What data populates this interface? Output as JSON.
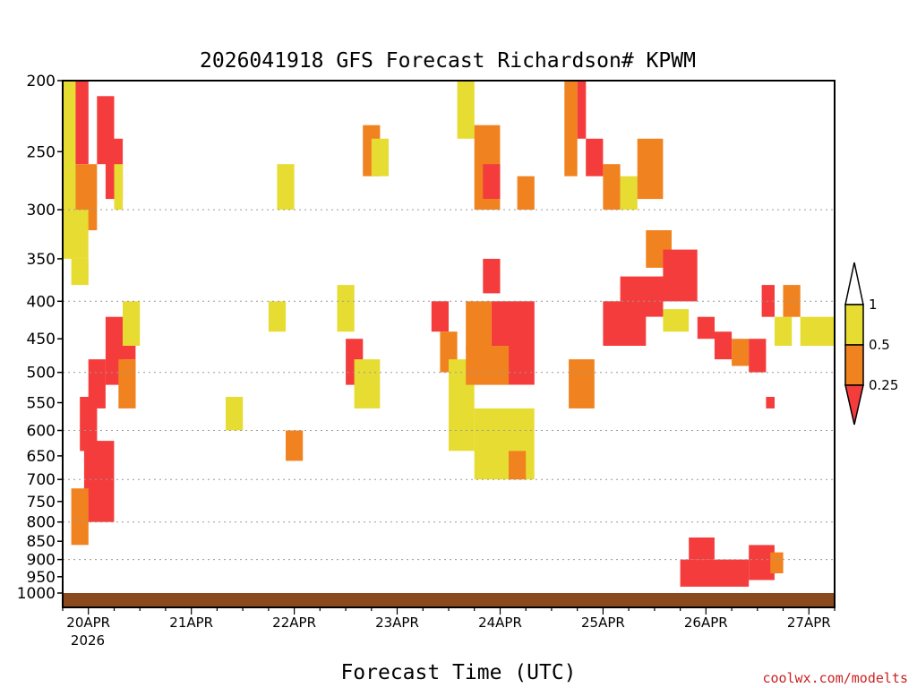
{
  "colors": {
    "low": "#f53c3c",
    "mid": "#f08220",
    "high": "#e6dc32",
    "ground": "#8b4a1e",
    "grid": "#9a9a9a"
  },
  "chart_data": {
    "type": "heatmap",
    "title": "2026041918 GFS Forecast Richardson# KPWM",
    "xlabel": "Forecast Time (UTC)",
    "ylabel": "",
    "y_scale": "pressure (reversed)",
    "ylim": [
      1000,
      200
    ],
    "xlim_hours": [
      0,
      180
    ],
    "y_ticks": [
      200,
      250,
      300,
      350,
      400,
      450,
      500,
      550,
      600,
      650,
      700,
      750,
      800,
      850,
      900,
      950,
      1000
    ],
    "y_grid": [
      300,
      400,
      500,
      600,
      700,
      800,
      900
    ],
    "x_ticks": [
      {
        "label": "20APR",
        "hour": 6
      },
      {
        "label": "21APR",
        "hour": 30
      },
      {
        "label": "22APR",
        "hour": 54
      },
      {
        "label": "23APR",
        "hour": 78
      },
      {
        "label": "24APR",
        "hour": 102
      },
      {
        "label": "25APR",
        "hour": 126
      },
      {
        "label": "26APR",
        "hour": 150
      },
      {
        "label": "27APR",
        "hour": 174
      }
    ],
    "x_sublabel": "2026",
    "legend": {
      "position": "right",
      "levels": [
        "1",
        "0.5",
        "0.25"
      ],
      "bins": [
        {
          "range": ">1",
          "color": "white"
        },
        {
          "range": "0.5-1",
          "color": "high"
        },
        {
          "range": "0.25-0.5",
          "color": "mid"
        },
        {
          "range": "<0.25",
          "color": "low"
        }
      ]
    },
    "cells": [
      {
        "h": [
          0,
          3
        ],
        "p": [
          200,
          300
        ],
        "c": "high"
      },
      {
        "h": [
          3,
          6
        ],
        "p": [
          200,
          260
        ],
        "c": "low"
      },
      {
        "h": [
          3,
          8
        ],
        "p": [
          260,
          320
        ],
        "c": "mid"
      },
      {
        "h": [
          0,
          6
        ],
        "p": [
          300,
          350
        ],
        "c": "high"
      },
      {
        "h": [
          5,
          12
        ],
        "p": [
          620,
          800
        ],
        "c": "low"
      },
      {
        "h": [
          2,
          6
        ],
        "p": [
          720,
          860
        ],
        "c": "mid"
      },
      {
        "h": [
          4,
          8
        ],
        "p": [
          540,
          640
        ],
        "c": "low"
      },
      {
        "h": [
          6,
          10
        ],
        "p": [
          480,
          560
        ],
        "c": "low"
      },
      {
        "h": [
          10,
          14
        ],
        "p": [
          420,
          520
        ],
        "c": "low"
      },
      {
        "h": [
          12,
          17
        ],
        "p": [
          430,
          480
        ],
        "c": "low"
      },
      {
        "h": [
          14,
          18
        ],
        "p": [
          400,
          460
        ],
        "c": "high"
      },
      {
        "h": [
          13,
          17
        ],
        "p": [
          480,
          560
        ],
        "c": "mid"
      },
      {
        "h": [
          8,
          12
        ],
        "p": [
          210,
          260
        ],
        "c": "low"
      },
      {
        "h": [
          10,
          14
        ],
        "p": [
          240,
          290
        ],
        "c": "low"
      },
      {
        "h": [
          12,
          14
        ],
        "p": [
          260,
          300
        ],
        "c": "high"
      },
      {
        "h": [
          2,
          6
        ],
        "p": [
          350,
          380
        ],
        "c": "high"
      },
      {
        "h": [
          38,
          42
        ],
        "p": [
          540,
          600
        ],
        "c": "high"
      },
      {
        "h": [
          52,
          56
        ],
        "p": [
          600,
          660
        ],
        "c": "mid"
      },
      {
        "h": [
          48,
          52
        ],
        "p": [
          400,
          440
        ],
        "c": "high"
      },
      {
        "h": [
          50,
          54
        ],
        "p": [
          260,
          300
        ],
        "c": "high"
      },
      {
        "h": [
          64,
          68
        ],
        "p": [
          380,
          440
        ],
        "c": "high"
      },
      {
        "h": [
          66,
          70
        ],
        "p": [
          450,
          520
        ],
        "c": "low"
      },
      {
        "h": [
          68,
          74
        ],
        "p": [
          480,
          560
        ],
        "c": "high"
      },
      {
        "h": [
          70,
          74
        ],
        "p": [
          230,
          270
        ],
        "c": "mid"
      },
      {
        "h": [
          72,
          76
        ],
        "p": [
          240,
          270
        ],
        "c": "high"
      },
      {
        "h": [
          86,
          90
        ],
        "p": [
          400,
          440
        ],
        "c": "low"
      },
      {
        "h": [
          88,
          92
        ],
        "p": [
          440,
          500
        ],
        "c": "mid"
      },
      {
        "h": [
          90,
          96
        ],
        "p": [
          480,
          640
        ],
        "c": "high"
      },
      {
        "h": [
          92,
          96
        ],
        "p": [
          200,
          240
        ],
        "c": "high"
      },
      {
        "h": [
          96,
          102
        ],
        "p": [
          230,
          300
        ],
        "c": "mid"
      },
      {
        "h": [
          98,
          102
        ],
        "p": [
          260,
          290
        ],
        "c": "low"
      },
      {
        "h": [
          100,
          110
        ],
        "p": [
          400,
          520
        ],
        "c": "low"
      },
      {
        "h": [
          94,
          100
        ],
        "p": [
          400,
          470
        ],
        "c": "mid"
      },
      {
        "h": [
          94,
          104
        ],
        "p": [
          460,
          520
        ],
        "c": "mid"
      },
      {
        "h": [
          96,
          110
        ],
        "p": [
          560,
          700
        ],
        "c": "high"
      },
      {
        "h": [
          104,
          108
        ],
        "p": [
          640,
          700
        ],
        "c": "mid"
      },
      {
        "h": [
          98,
          102
        ],
        "p": [
          350,
          390
        ],
        "c": "low"
      },
      {
        "h": [
          106,
          110
        ],
        "p": [
          270,
          300
        ],
        "c": "mid"
      },
      {
        "h": [
          117,
          120
        ],
        "p": [
          200,
          270
        ],
        "c": "mid"
      },
      {
        "h": [
          120,
          122
        ],
        "p": [
          200,
          240
        ],
        "c": "low"
      },
      {
        "h": [
          122,
          126
        ],
        "p": [
          240,
          270
        ],
        "c": "low"
      },
      {
        "h": [
          118,
          124
        ],
        "p": [
          480,
          560
        ],
        "c": "mid"
      },
      {
        "h": [
          126,
          130
        ],
        "p": [
          260,
          300
        ],
        "c": "mid"
      },
      {
        "h": [
          130,
          134
        ],
        "p": [
          270,
          300
        ],
        "c": "high"
      },
      {
        "h": [
          134,
          140
        ],
        "p": [
          240,
          290
        ],
        "c": "mid"
      },
      {
        "h": [
          136,
          142
        ],
        "p": [
          320,
          360
        ],
        "c": "mid"
      },
      {
        "h": [
          140,
          148
        ],
        "p": [
          340,
          400
        ],
        "c": "low"
      },
      {
        "h": [
          130,
          140
        ],
        "p": [
          370,
          420
        ],
        "c": "low"
      },
      {
        "h": [
          126,
          136
        ],
        "p": [
          400,
          460
        ],
        "c": "low"
      },
      {
        "h": [
          140,
          146
        ],
        "p": [
          410,
          440
        ],
        "c": "high"
      },
      {
        "h": [
          148,
          152
        ],
        "p": [
          420,
          450
        ],
        "c": "low"
      },
      {
        "h": [
          152,
          156
        ],
        "p": [
          440,
          480
        ],
        "c": "low"
      },
      {
        "h": [
          156,
          160
        ],
        "p": [
          450,
          490
        ],
        "c": "mid"
      },
      {
        "h": [
          160,
          164
        ],
        "p": [
          450,
          500
        ],
        "c": "low"
      },
      {
        "h": [
          166,
          170
        ],
        "p": [
          420,
          460
        ],
        "c": "high"
      },
      {
        "h": [
          172,
          180
        ],
        "p": [
          420,
          460
        ],
        "c": "high"
      },
      {
        "h": [
          163,
          166
        ],
        "p": [
          380,
          420
        ],
        "c": "low"
      },
      {
        "h": [
          164,
          166
        ],
        "p": [
          540,
          560
        ],
        "c": "low"
      },
      {
        "h": [
          168,
          172
        ],
        "p": [
          380,
          420
        ],
        "c": "mid"
      },
      {
        "h": [
          146,
          152
        ],
        "p": [
          840,
          900
        ],
        "c": "low"
      },
      {
        "h": [
          160,
          166
        ],
        "p": [
          860,
          960
        ],
        "c": "low"
      },
      {
        "h": [
          144,
          160
        ],
        "p": [
          900,
          980
        ],
        "c": "low"
      },
      {
        "h": [
          165,
          168
        ],
        "p": [
          880,
          940
        ],
        "c": "mid"
      }
    ]
  }
}
